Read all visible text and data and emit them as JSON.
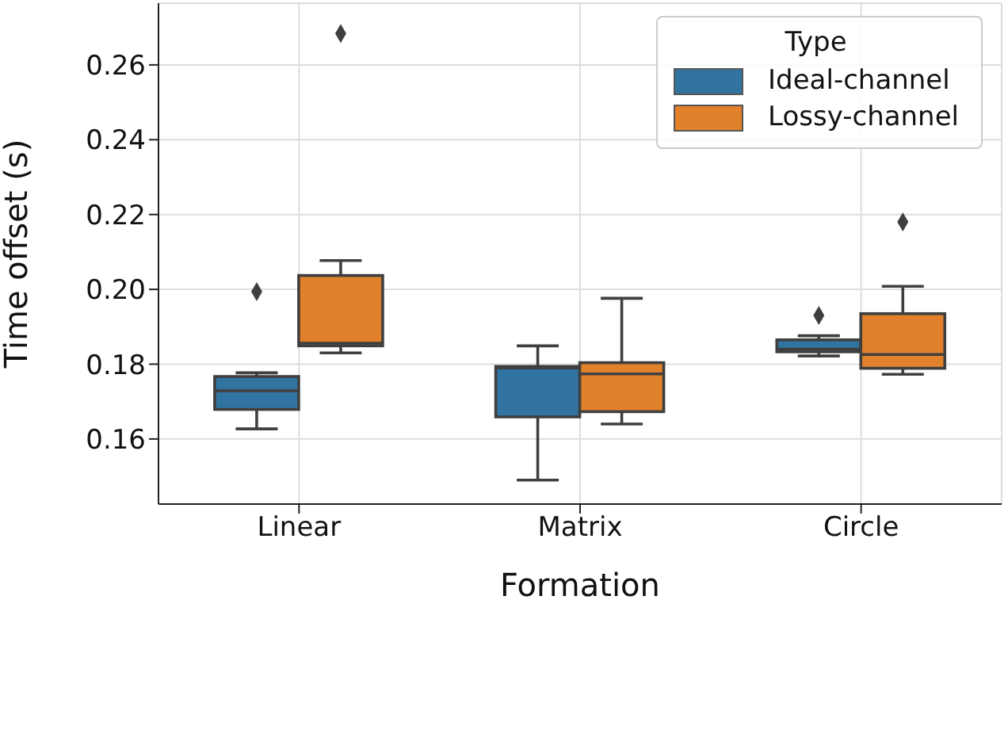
{
  "chart_data": {
    "type": "box",
    "xlabel": "Formation",
    "ylabel": "Time offset (s)",
    "legend_title": "Type",
    "categories": [
      "Linear",
      "Matrix",
      "Circle"
    ],
    "ylim": [
      0.1426,
      0.2765
    ],
    "yticks": [
      0.16,
      0.18,
      {
        "value": 0.2,
        "label": "0.20"
      },
      0.22,
      0.24,
      0.26
    ],
    "grid": true,
    "legend": "top right",
    "marker": "diamond",
    "series": [
      {
        "name": "Ideal-channel",
        "color": "#3274a1",
        "boxes": [
          {
            "low": 0.1627,
            "q1": 0.1679,
            "median": 0.1729,
            "q3": 0.1767,
            "high": 0.1777,
            "outliers": [
              0.1994
            ]
          },
          {
            "low": 0.149,
            "q1": 0.1659,
            "median": 0.179,
            "q3": 0.1794,
            "high": 0.1849
          },
          {
            "low": 0.1822,
            "q1": 0.1833,
            "median": 0.184,
            "q3": 0.1865,
            "high": 0.1876,
            "outliers": [
              0.193
            ]
          }
        ]
      },
      {
        "name": "Lossy-channel",
        "color": "#e1812c",
        "boxes": [
          {
            "low": 0.183,
            "q1": 0.1849,
            "median": 0.1856,
            "q3": 0.2037,
            "high": 0.2077,
            "outliers": [
              0.2684
            ]
          },
          {
            "low": 0.164,
            "q1": 0.1673,
            "median": 0.1774,
            "q3": 0.1804,
            "high": 0.1976
          },
          {
            "low": 0.1773,
            "q1": 0.1789,
            "median": 0.1826,
            "q3": 0.1935,
            "high": 0.2008,
            "outliers": [
              0.218
            ]
          }
        ]
      }
    ]
  }
}
